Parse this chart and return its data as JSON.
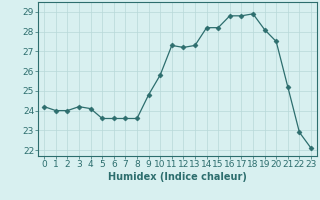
{
  "x": [
    0,
    1,
    2,
    3,
    4,
    5,
    6,
    7,
    8,
    9,
    10,
    11,
    12,
    13,
    14,
    15,
    16,
    17,
    18,
    19,
    20,
    21,
    22,
    23
  ],
  "y": [
    24.2,
    24.0,
    24.0,
    24.2,
    24.1,
    23.6,
    23.6,
    23.6,
    23.6,
    24.8,
    25.8,
    27.3,
    27.2,
    27.3,
    28.2,
    28.2,
    28.8,
    28.8,
    28.9,
    28.1,
    27.5,
    25.2,
    22.9,
    22.1
  ],
  "xlabel": "Humidex (Indice chaleur)",
  "xlim": [
    -0.5,
    23.5
  ],
  "ylim": [
    21.7,
    29.5
  ],
  "yticks": [
    22,
    23,
    24,
    25,
    26,
    27,
    28,
    29
  ],
  "xticks": [
    0,
    1,
    2,
    3,
    4,
    5,
    6,
    7,
    8,
    9,
    10,
    11,
    12,
    13,
    14,
    15,
    16,
    17,
    18,
    19,
    20,
    21,
    22,
    23
  ],
  "line_color": "#2d6e6e",
  "marker": "D",
  "marker_size": 2.5,
  "bg_color": "#d8f0f0",
  "grid_color": "#b8d8d8",
  "axis_color": "#2d6e6e",
  "tick_color": "#2d6e6e",
  "label_color": "#2d6e6e",
  "label_fontsize": 7,
  "tick_fontsize": 6.5
}
